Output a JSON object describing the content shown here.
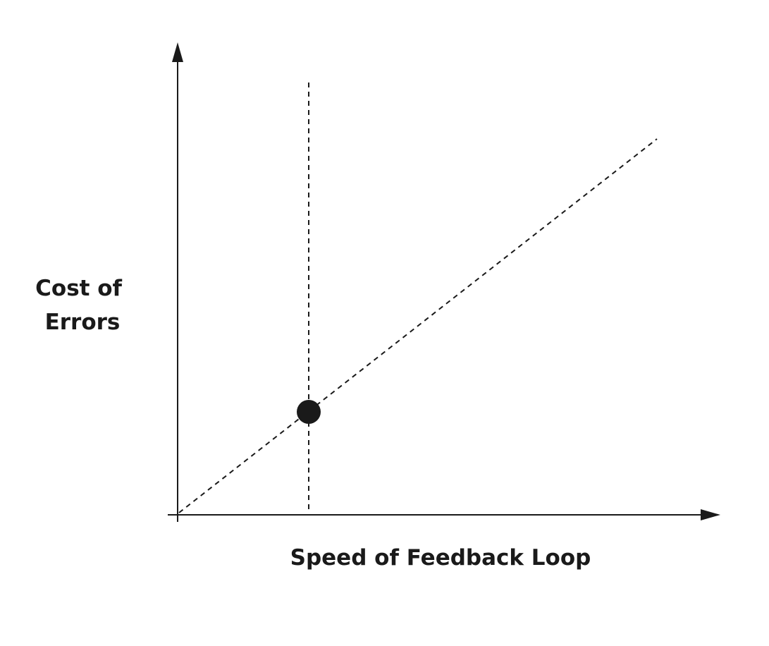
{
  "y_axis_label": {
    "lines": [
      "Cost of",
      "Errors"
    ]
  },
  "x_axis_label": "Speed of Feedback Loop",
  "colors": {
    "ink": "#1a1a1a",
    "background": "#ffffff"
  }
}
